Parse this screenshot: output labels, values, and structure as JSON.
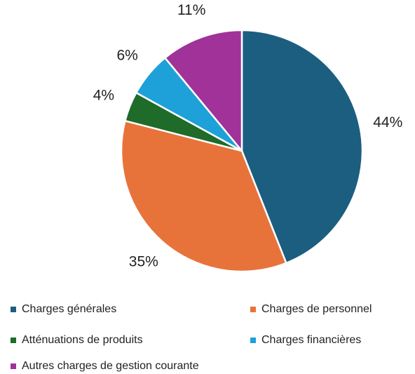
{
  "chart_data": {
    "type": "pie",
    "categories": [
      "Charges générales",
      "Charges de personnel",
      "Atténuations de produits",
      "Charges financières",
      "Autres charges de gestion courante"
    ],
    "values": [
      44,
      35,
      4,
      6,
      11
    ],
    "value_labels": [
      "44%",
      "35%",
      "4%",
      "6%",
      "11%"
    ],
    "colors": [
      "#1b5e80",
      "#e8733a",
      "#1e6b2a",
      "#1ea0d8",
      "#a0329a"
    ]
  }
}
